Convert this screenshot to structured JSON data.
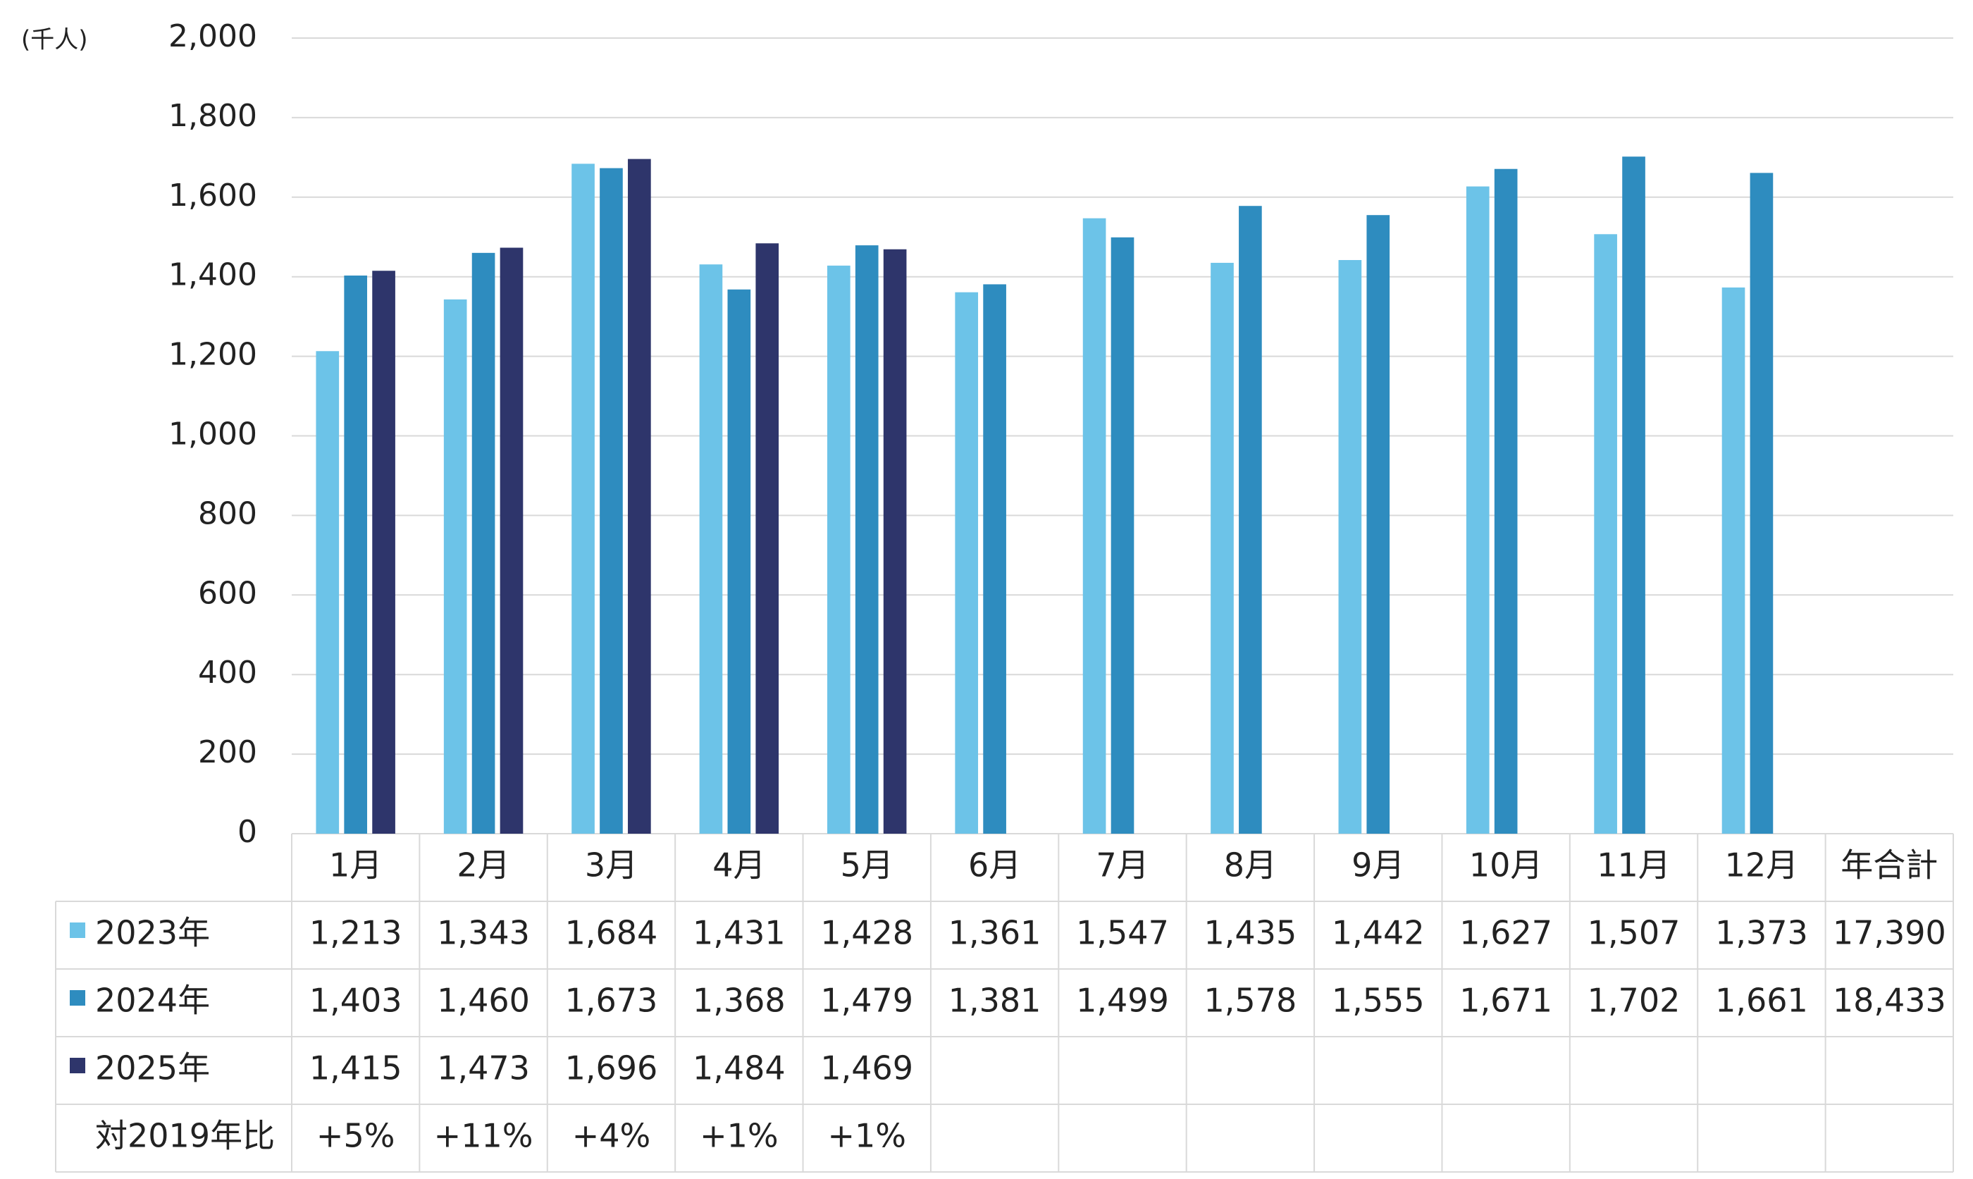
{
  "chart_data": {
    "type": "bar",
    "unit_label": "(千人)",
    "categories": [
      "1月",
      "2月",
      "3月",
      "4月",
      "5月",
      "6月",
      "7月",
      "8月",
      "9月",
      "10月",
      "11月",
      "12月"
    ],
    "total_header": "年合計",
    "series": [
      {
        "name": "2023年",
        "color": "#6cc3e8",
        "values": [
          1213,
          1343,
          1684,
          1431,
          1428,
          1361,
          1547,
          1435,
          1442,
          1627,
          1507,
          1373
        ],
        "value_labels": [
          "1,213",
          "1,343",
          "1,684",
          "1,431",
          "1,428",
          "1,361",
          "1,547",
          "1,435",
          "1,442",
          "1,627",
          "1,507",
          "1,373"
        ],
        "total_label": "17,390"
      },
      {
        "name": "2024年",
        "color": "#2e8cbf",
        "values": [
          1403,
          1460,
          1673,
          1368,
          1479,
          1381,
          1499,
          1578,
          1555,
          1671,
          1702,
          1661
        ],
        "value_labels": [
          "1,403",
          "1,460",
          "1,673",
          "1,368",
          "1,479",
          "1,381",
          "1,499",
          "1,578",
          "1,555",
          "1,671",
          "1,702",
          "1,661"
        ],
        "total_label": "18,433"
      },
      {
        "name": "2025年",
        "color": "#2e356b",
        "values": [
          1415,
          1473,
          1696,
          1484,
          1469,
          null,
          null,
          null,
          null,
          null,
          null,
          null
        ],
        "value_labels": [
          "1,415",
          "1,473",
          "1,696",
          "1,484",
          "1,469",
          null,
          null,
          null,
          null,
          null,
          null,
          null
        ]
      }
    ],
    "comparison": {
      "name": "対2019年比",
      "labels": [
        "+5%",
        "+11%",
        "+4%",
        "+1%",
        "+1%"
      ]
    },
    "ylim": [
      0,
      2000
    ],
    "yticks": [
      0,
      {
        "value": 200,
        "label": "200"
      },
      400,
      600,
      800,
      {
        "value": 1000,
        "label": "1,000"
      },
      {
        "value": 1200,
        "label": "1,200"
      },
      {
        "value": 1400,
        "label": "1,400"
      },
      {
        "value": 1600,
        "label": "1,600"
      },
      {
        "value": 1800,
        "label": "1,800"
      },
      {
        "value": 2000,
        "label": "2,000"
      }
    ],
    "grid": true
  }
}
